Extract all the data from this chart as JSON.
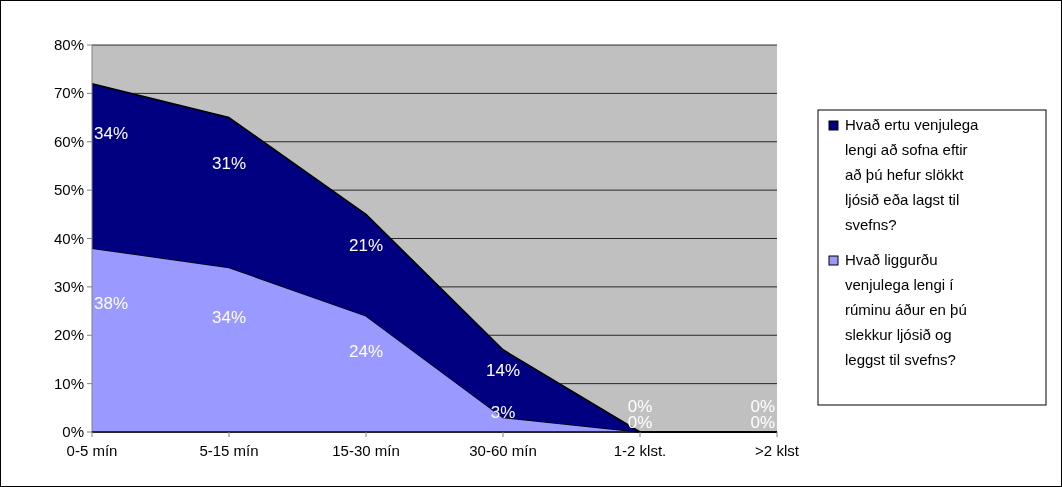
{
  "chart_data": {
    "type": "area",
    "stacked": true,
    "categories": [
      "0-5 mín",
      "5-15 mín",
      "15-30 mín",
      "30-60 mín",
      "1-2 klst.",
      ">2 klst"
    ],
    "series": [
      {
        "name": "Hvað liggurðu venjulega lengi í rúminu áður en þú slekkur ljósið og leggst til svefns?",
        "color": "#9999ff",
        "values": [
          38,
          34,
          24,
          3,
          0,
          0
        ],
        "value_labels": [
          "38%",
          "34%",
          "24%",
          "3%",
          "0%",
          "0%"
        ]
      },
      {
        "name": "Hvað ertu venjulega lengi að sofna eftir að þú hefur slökkt ljósið eða lagst til svefns?",
        "color": "#000080",
        "values": [
          34,
          31,
          21,
          14,
          0,
          0
        ],
        "value_labels": [
          "34%",
          "31%",
          "21%",
          "14%",
          "0%",
          "0%"
        ]
      }
    ],
    "ylim": [
      0,
      80
    ],
    "yticks": [
      {
        "value": 0,
        "label": "0%"
      },
      {
        "value": 10,
        "label": "10%"
      },
      {
        "value": 20,
        "label": "20%"
      },
      {
        "value": 30,
        "label": "30%"
      },
      {
        "value": 40,
        "label": "40%"
      },
      {
        "value": 50,
        "label": "50%"
      },
      {
        "value": 60,
        "label": "60%"
      },
      {
        "value": 70,
        "label": "70%"
      },
      {
        "value": 80,
        "label": "80%"
      }
    ],
    "grid": "y",
    "legend": "right"
  }
}
